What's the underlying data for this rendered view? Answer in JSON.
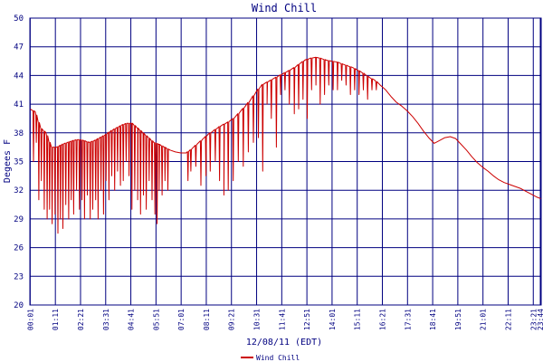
{
  "chart_data": {
    "type": "line",
    "title": "Wind Chill",
    "xlabel": "12/08/11 (EDT)",
    "ylabel": "Degees F",
    "ylim": [
      20,
      50
    ],
    "yticks": [
      20,
      23,
      26,
      29,
      32,
      35,
      38,
      41,
      44,
      47,
      50
    ],
    "xlim": [
      0,
      1423
    ],
    "xtick_labels": [
      "00:01",
      "01:11",
      "02:21",
      "03:31",
      "04:41",
      "05:51",
      "07:01",
      "08:11",
      "09:21",
      "10:31",
      "11:41",
      "12:51",
      "14:01",
      "15:11",
      "16:21",
      "17:31",
      "18:41",
      "19:51",
      "21:01",
      "22:11",
      "23:21",
      "23:44"
    ],
    "xtick_minutes": [
      1,
      71,
      141,
      211,
      281,
      351,
      421,
      491,
      561,
      631,
      701,
      771,
      841,
      911,
      981,
      1051,
      1121,
      1191,
      1261,
      1331,
      1401,
      1424
    ],
    "grid": true,
    "legend_position": "bottom-center",
    "colors": {
      "series": "#cc0000",
      "grid": "#000080",
      "text": "#000080"
    },
    "series": [
      {
        "name": "Wind Chill",
        "baseline": {
          "minutes": [
            1,
            15,
            30,
            45,
            60,
            75,
            90,
            105,
            120,
            135,
            150,
            165,
            180,
            195,
            210,
            225,
            240,
            255,
            270,
            285,
            300,
            315,
            330,
            345,
            360,
            375,
            390,
            405,
            420,
            435,
            450,
            465,
            480,
            495,
            510,
            525,
            540,
            555,
            570,
            585,
            600,
            615,
            630,
            645,
            660,
            675,
            690,
            705,
            720,
            735,
            750,
            765,
            780,
            795,
            810,
            825,
            840,
            855,
            870,
            885,
            900,
            915,
            930,
            945,
            960,
            975,
            990,
            1005,
            1020,
            1035,
            1050,
            1065,
            1080,
            1095,
            1110,
            1125,
            1140,
            1155,
            1170,
            1185,
            1200,
            1215,
            1230,
            1245,
            1260,
            1275,
            1290,
            1305,
            1320,
            1335,
            1350,
            1365,
            1380,
            1395,
            1410,
            1423
          ],
          "values": [
            40.5,
            40.2,
            38.5,
            38,
            36.5,
            36.5,
            36.8,
            37,
            37.2,
            37.3,
            37.2,
            37,
            37.2,
            37.5,
            37.8,
            38.2,
            38.5,
            38.8,
            39,
            39,
            38.5,
            38,
            37.5,
            37,
            36.8,
            36.5,
            36.2,
            36,
            35.9,
            35.9,
            36.3,
            36.8,
            37.3,
            37.8,
            38.2,
            38.6,
            38.9,
            39.2,
            39.6,
            40.2,
            40.8,
            41.5,
            42.3,
            43,
            43.3,
            43.6,
            43.9,
            44.2,
            44.5,
            44.8,
            45.2,
            45.6,
            45.8,
            45.9,
            45.8,
            45.6,
            45.5,
            45.4,
            45.2,
            45,
            44.8,
            44.5,
            44.2,
            43.8,
            43.5,
            43,
            42.5,
            41.8,
            41.2,
            40.8,
            40.3,
            39.7,
            39,
            38.2,
            37.5,
            36.9,
            37.2,
            37.5,
            37.6,
            37.4,
            36.8,
            36.2,
            35.5,
            34.9,
            34.4,
            34,
            33.5,
            33.1,
            32.8,
            32.6,
            32.4,
            32.2,
            31.9,
            31.6,
            31.3,
            31.1
          ]
        },
        "gusts": [
          [
            10,
            35
          ],
          [
            18,
            37
          ],
          [
            25,
            31
          ],
          [
            32,
            33
          ],
          [
            40,
            30
          ],
          [
            48,
            29
          ],
          [
            55,
            30
          ],
          [
            62,
            28.5
          ],
          [
            70,
            29.5
          ],
          [
            78,
            27.5
          ],
          [
            85,
            29
          ],
          [
            92,
            28
          ],
          [
            100,
            30.5
          ],
          [
            108,
            29
          ],
          [
            115,
            31
          ],
          [
            122,
            29.5
          ],
          [
            130,
            32
          ],
          [
            138,
            30
          ],
          [
            145,
            31
          ],
          [
            152,
            29
          ],
          [
            160,
            31.5
          ],
          [
            168,
            29
          ],
          [
            175,
            30
          ],
          [
            183,
            31
          ],
          [
            190,
            29
          ],
          [
            198,
            32
          ],
          [
            205,
            29.5
          ],
          [
            212,
            33
          ],
          [
            220,
            31
          ],
          [
            228,
            33.5
          ],
          [
            236,
            32
          ],
          [
            244,
            34
          ],
          [
            252,
            32.5
          ],
          [
            260,
            33
          ],
          [
            268,
            35
          ],
          [
            276,
            33.5
          ],
          [
            284,
            30
          ],
          [
            292,
            32
          ],
          [
            300,
            31
          ],
          [
            308,
            29.5
          ],
          [
            316,
            31.5
          ],
          [
            324,
            30
          ],
          [
            332,
            33
          ],
          [
            340,
            31
          ],
          [
            348,
            29.5
          ],
          [
            354,
            28.5
          ],
          [
            360,
            32
          ],
          [
            368,
            31.5
          ],
          [
            376,
            33
          ],
          [
            384,
            32
          ],
          [
            440,
            33
          ],
          [
            448,
            34
          ],
          [
            462,
            34.5
          ],
          [
            476,
            32.5
          ],
          [
            490,
            33.5
          ],
          [
            502,
            34
          ],
          [
            516,
            35
          ],
          [
            528,
            33
          ],
          [
            540,
            31.5
          ],
          [
            552,
            32
          ],
          [
            566,
            33
          ],
          [
            580,
            35
          ],
          [
            594,
            34.5
          ],
          [
            608,
            36
          ],
          [
            622,
            37
          ],
          [
            636,
            37.5
          ],
          [
            648,
            34
          ],
          [
            660,
            41
          ],
          [
            672,
            39.5
          ],
          [
            686,
            36.5
          ],
          [
            698,
            42
          ],
          [
            710,
            42.5
          ],
          [
            722,
            41
          ],
          [
            736,
            40
          ],
          [
            748,
            40.5
          ],
          [
            760,
            41.5
          ],
          [
            772,
            39.5
          ],
          [
            784,
            42.5
          ],
          [
            796,
            43
          ],
          [
            808,
            41
          ],
          [
            820,
            42
          ],
          [
            832,
            43
          ],
          [
            844,
            42.5
          ],
          [
            856,
            42.5
          ],
          [
            868,
            43.5
          ],
          [
            880,
            43
          ],
          [
            892,
            42
          ],
          [
            904,
            42.5
          ],
          [
            916,
            42
          ],
          [
            928,
            42.5
          ],
          [
            940,
            41.5
          ],
          [
            952,
            42.5
          ],
          [
            964,
            42.5
          ]
        ]
      }
    ]
  }
}
